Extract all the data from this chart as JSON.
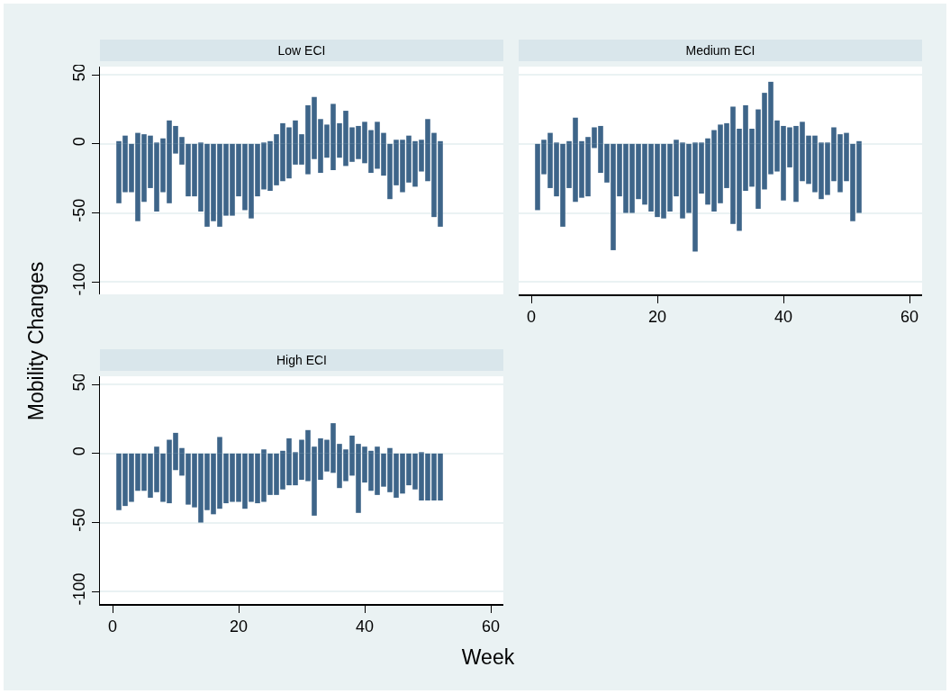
{
  "chart_data": [
    {
      "type": "bar",
      "title": "Low ECI",
      "ylabel": "Mobility Changes",
      "x": [
        1,
        2,
        3,
        4,
        5,
        6,
        7,
        8,
        9,
        10,
        11,
        12,
        13,
        14,
        15,
        16,
        17,
        18,
        19,
        20,
        21,
        22,
        23,
        24,
        25,
        26,
        27,
        28,
        29,
        30,
        31,
        32,
        33,
        34,
        35,
        36,
        37,
        38,
        39,
        40,
        41,
        42,
        43,
        44,
        45,
        46,
        47,
        48,
        49,
        50,
        51,
        52
      ],
      "series": [
        {
          "color": "#3e6589",
          "values": [
            2,
            6,
            0,
            8,
            7,
            6,
            1,
            4,
            17,
            13,
            5,
            0,
            0,
            1,
            0,
            0,
            0,
            0,
            0,
            0,
            0,
            0,
            0,
            1,
            2,
            7,
            15,
            12,
            17,
            7,
            28,
            34,
            18,
            14,
            29,
            15,
            24,
            12,
            13,
            16,
            10,
            16,
            8,
            0,
            3,
            3,
            6,
            2,
            3,
            18,
            8,
            2
          ]
        },
        {
          "color": "#3e6589",
          "values": [
            -43,
            -35,
            -35,
            -56,
            -42,
            -32,
            -49,
            -35,
            -43,
            -7,
            -15,
            -38,
            -38,
            -49,
            -60,
            -56,
            -60,
            -52,
            -52,
            -38,
            -48,
            -54,
            -38,
            -33,
            -34,
            -30,
            -27,
            -25,
            -15,
            -15,
            -22,
            -11,
            -21,
            -10,
            -19,
            -10,
            -16,
            -13,
            -11,
            -14,
            -21,
            -18,
            -23,
            -40,
            -30,
            -35,
            -28,
            -31,
            -20,
            -27,
            -53,
            -60
          ]
        }
      ],
      "xlim": [
        -2,
        62
      ],
      "xticks": [
        0,
        20,
        40,
        60
      ],
      "ylim": [
        -109,
        56
      ],
      "yticks": [
        -100,
        -50,
        0,
        50
      ],
      "grid": "y",
      "tick_labels": "y",
      "stacked": true
    },
    {
      "type": "bar",
      "title": "Medium ECI",
      "x": [
        1,
        2,
        3,
        4,
        5,
        6,
        7,
        8,
        9,
        10,
        11,
        12,
        13,
        14,
        15,
        16,
        17,
        18,
        19,
        20,
        21,
        22,
        23,
        24,
        25,
        26,
        27,
        28,
        29,
        30,
        31,
        32,
        33,
        34,
        35,
        36,
        37,
        38,
        39,
        40,
        41,
        42,
        43,
        44,
        45,
        46,
        47,
        48,
        49,
        50,
        51,
        52
      ],
      "series": [
        {
          "color": "#3e6589",
          "values": [
            0,
            3,
            8,
            1,
            0,
            2,
            19,
            2,
            5,
            12,
            13,
            0,
            0,
            0,
            0,
            0,
            0,
            0,
            0,
            0,
            0,
            0,
            3,
            1,
            0,
            1,
            1,
            4,
            10,
            14,
            15,
            27,
            11,
            28,
            11,
            25,
            37,
            45,
            17,
            13,
            12,
            13,
            16,
            6,
            6,
            1,
            1,
            12,
            7,
            8,
            0,
            2
          ]
        },
        {
          "color": "#3e6589",
          "values": [
            -48,
            -22,
            -32,
            -38,
            -60,
            -32,
            -42,
            -39,
            -38,
            -3,
            -21,
            -28,
            -77,
            -38,
            -50,
            -50,
            -40,
            -44,
            -49,
            -53,
            -54,
            -49,
            -38,
            -54,
            -50,
            -78,
            -36,
            -44,
            -49,
            -43,
            -32,
            -58,
            -63,
            -34,
            -31,
            -47,
            -33,
            -22,
            -20,
            -41,
            -17,
            -42,
            -27,
            -29,
            -35,
            -40,
            -37,
            -27,
            -35,
            -27,
            -56,
            -50
          ]
        }
      ],
      "xlim": [
        -2,
        62
      ],
      "xticks": [
        0,
        20,
        40,
        60
      ],
      "ylim": [
        -109,
        56
      ],
      "yticks": [
        -100,
        -50,
        0,
        50
      ],
      "grid": "y",
      "tick_labels": "x",
      "stacked": true
    },
    {
      "type": "bar",
      "title": "High ECI",
      "xlabel": "Week",
      "x": [
        1,
        2,
        3,
        4,
        5,
        6,
        7,
        8,
        9,
        10,
        11,
        12,
        13,
        14,
        15,
        16,
        17,
        18,
        19,
        20,
        21,
        22,
        23,
        24,
        25,
        26,
        27,
        28,
        29,
        30,
        31,
        32,
        33,
        34,
        35,
        36,
        37,
        38,
        39,
        40,
        41,
        42,
        43,
        44,
        45,
        46,
        47,
        48,
        49,
        50,
        51,
        52
      ],
      "series": [
        {
          "color": "#3e6589",
          "values": [
            0,
            0,
            0,
            0,
            0,
            0,
            5,
            0,
            10,
            15,
            4,
            0,
            0,
            0,
            0,
            0,
            12,
            0,
            0,
            0,
            0,
            0,
            0,
            3,
            0,
            0,
            2,
            11,
            1,
            10,
            17,
            5,
            11,
            10,
            22,
            7,
            3,
            13,
            7,
            5,
            2,
            5,
            0,
            4,
            0,
            0,
            0,
            0,
            1,
            0,
            0,
            0
          ]
        },
        {
          "color": "#3e6589",
          "values": [
            -41,
            -38,
            -35,
            -27,
            -27,
            -32,
            -28,
            -35,
            -36,
            -12,
            -16,
            -37,
            -39,
            -50,
            -41,
            -44,
            -40,
            -36,
            -35,
            -35,
            -40,
            -35,
            -36,
            -35,
            -30,
            -30,
            -26,
            -23,
            -23,
            -19,
            -20,
            -45,
            -19,
            -13,
            -14,
            -25,
            -20,
            -16,
            -43,
            -21,
            -27,
            -30,
            -24,
            -28,
            -32,
            -29,
            -23,
            -26,
            -34,
            -34,
            -34,
            -34
          ]
        }
      ],
      "xlim": [
        -2,
        62
      ],
      "xticks": [
        0,
        20,
        40,
        60
      ],
      "ylim": [
        -109,
        56
      ],
      "yticks": [
        -100,
        -50,
        0,
        50
      ],
      "grid": "y",
      "stacked": true
    }
  ]
}
